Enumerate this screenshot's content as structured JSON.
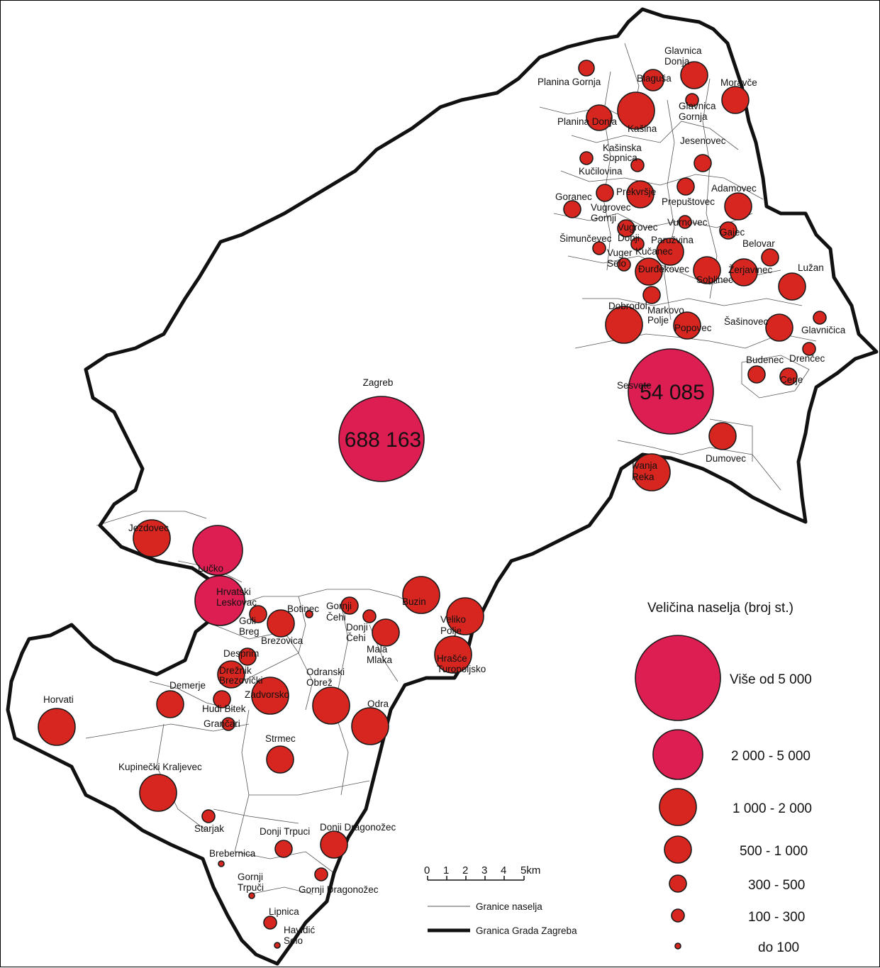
{
  "colors": {
    "large": "#dc1e52",
    "small": "#d7261f",
    "outline": "#1a1a1a",
    "border": "#111111"
  },
  "cities": [
    {
      "name": "Zagreb",
      "value": "688 163",
      "size": "Više od 5 000"
    },
    {
      "name": "Sesvete",
      "value": "54 085",
      "size": "Više od 5 000"
    }
  ],
  "settlements": [
    "Planina Gornja",
    "Glavnica Donja",
    "Blaguša",
    "Moravče",
    "Glavnica Gornja",
    "Planina Donja",
    "Kašina",
    "Jesenovec",
    "Kašinska Sopnica",
    "Kučilovina",
    "Goranec",
    "Prekvršje",
    "Adamovec",
    "Vugrovec Gornji",
    "Prepuštovec",
    "Vurnovec",
    "Šimunčevec",
    "Vugrovec Donji",
    "Paružvina",
    "Gajec",
    "Vuger Selo",
    "Kučanec",
    "Belovar",
    "Đurđekovec",
    "Soblinec",
    "Žerjavinec",
    "Lužan",
    "Dobrodol",
    "Markovo Polje",
    "Popovec",
    "Šašinovec",
    "Glavničica",
    "Budenec",
    "Drenčec",
    "Cerje",
    "Dumovec",
    "Ivanja Reka",
    "Jezdovec",
    "Lučko",
    "Hrvatski Leskovac",
    "Botinec",
    "Gornji Čehi",
    "Buzin",
    "Goli Breg",
    "Brezovica",
    "Donji Čehi",
    "Veliko Polje",
    "Mala Mlaka",
    "Desprim",
    "Hrašće Turopoljsko",
    "Drežnik Brezovički",
    "Odranski Obrež",
    "Zadvorsko",
    "Demerje",
    "Horvati",
    "Hudi Bitek",
    "Odra",
    "Grančari",
    "Strmec",
    "Kupinečki Kraljevec",
    "Starjak",
    "Donji Trpuci",
    "Donji Dragonožec",
    "Brebernica",
    "Gornji Trpuci",
    "Gornji Dragonožec",
    "Lipnica",
    "Havidić Selo"
  ],
  "legend": {
    "title": "Veličina naselja (broj st.)",
    "classes": [
      "Više od 5 000",
      "2 000 - 5 000",
      "1 000 - 2 000",
      "500 - 1 000",
      "300 - 500",
      "100 - 300",
      "do 100"
    ],
    "lines": [
      "Granice naselja",
      "Granica Grada Zagreba"
    ]
  },
  "scale": {
    "ticks": [
      "0",
      "1",
      "2",
      "3",
      "4",
      "5km"
    ]
  }
}
